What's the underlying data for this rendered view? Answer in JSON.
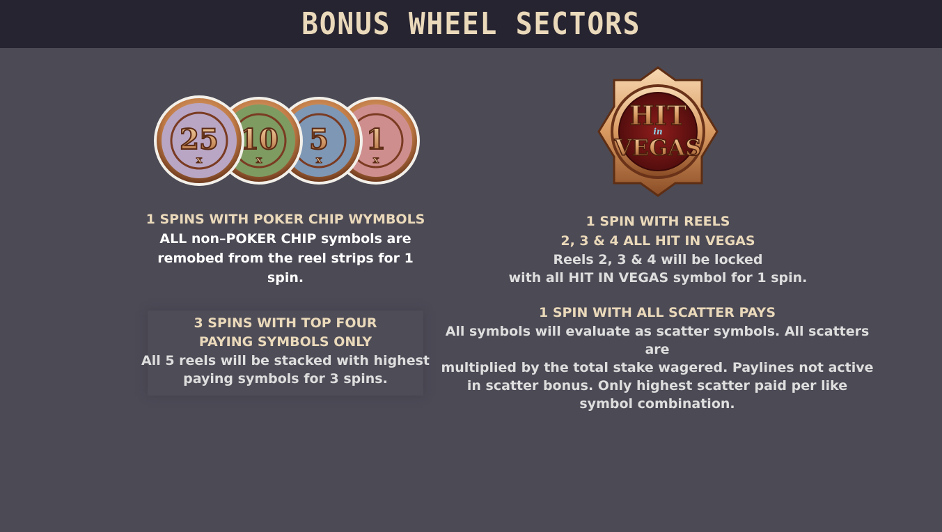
{
  "header": {
    "title": "BONUS WHEEL SECTORS"
  },
  "chips": [
    {
      "value": "25",
      "mult": "x",
      "color": "#b9a6c4"
    },
    {
      "value": "10",
      "mult": "x",
      "color": "#7e9b62"
    },
    {
      "value": "5",
      "mult": "x",
      "color": "#7e97b5"
    },
    {
      "value": "1",
      "mult": "x",
      "color": "#cf8e8e"
    }
  ],
  "logo": {
    "line1": "HIT",
    "line2": "in",
    "line3": "VEGAS"
  },
  "sectors": {
    "poker_chip": {
      "heading": "1 SPINS WITH POKER CHIP WYMBOLS",
      "line1": "ALL non–POKER CHIP symbols are",
      "line2": "remobed from the reel strips for 1 spin."
    },
    "top_four": {
      "heading1": "3 SPINS WITH TOP FOUR",
      "heading2": "PAYING SYMBOLS ONLY",
      "line1": "All 5 reels will be stacked with highest",
      "line2": "paying symbols for 3 spins."
    },
    "hit_in_vegas": {
      "heading1": "1 SPIN WITH REELS",
      "heading2": "2, 3 & 4 ALL HIT IN VEGAS",
      "line1": "Reels 2, 3 & 4 will be locked",
      "line2": "with all HIT IN VEGAS symbol for 1 spin."
    },
    "scatter": {
      "heading": "1 SPIN WITH ALL SCATTER PAYS",
      "line1": "All symbols will evaluate as scatter symbols. All scatters are",
      "line2": "multiplied by the total stake wagered. Paylines not active",
      "line3": "in scatter bonus. Only highest scatter paid per like",
      "line4": "symbol combination."
    }
  }
}
